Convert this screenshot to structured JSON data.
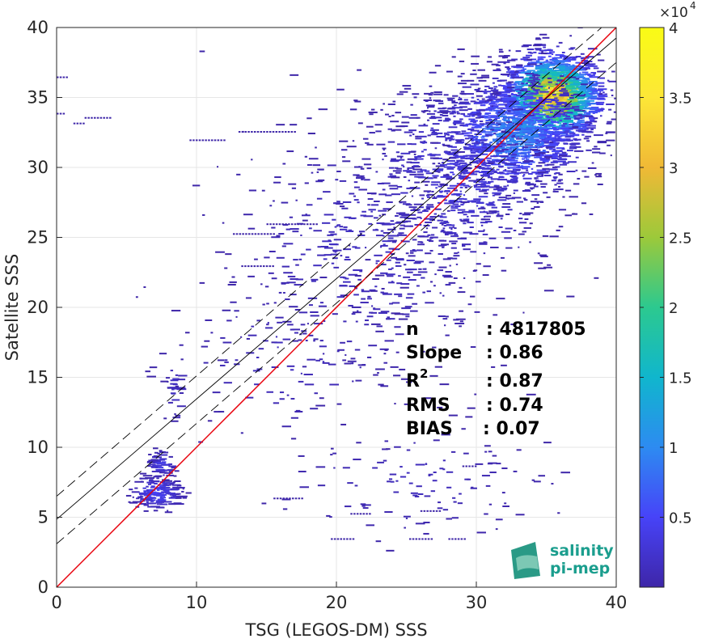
{
  "chart_data": {
    "type": "heatmap",
    "xlabel": "TSG (LEGOS-DM) SSS",
    "ylabel": "Satellite SSS",
    "xlim": [
      0,
      40
    ],
    "ylim": [
      0,
      40
    ],
    "x_ticks": [
      0,
      10,
      20,
      30,
      40
    ],
    "y_ticks": [
      0,
      5,
      10,
      15,
      20,
      25,
      30,
      35,
      40
    ],
    "grid": true,
    "colorbar": {
      "multiplier_label": "×10",
      "exponent": "4",
      "range": [
        0,
        4
      ],
      "ticks": [
        0.5,
        1,
        1.5,
        2,
        2.5,
        3,
        3.5,
        4
      ],
      "colormap": "parula",
      "colors": [
        "#3e26a8",
        "#4743f8",
        "#2d8bf1",
        "#10b6cd",
        "#2cc98f",
        "#9cc93a",
        "#f0b936",
        "#fde737",
        "#f9fb15"
      ]
    },
    "stats": {
      "n": {
        "label": "n",
        "value": ": 4817805"
      },
      "slope": {
        "label": "Slope",
        "value": ": 0.86"
      },
      "r2": {
        "label": "R",
        "sup": "2",
        "value": ": 0.87"
      },
      "rms": {
        "label": "RMS",
        "value": ": 0.74"
      },
      "bias": {
        "label": "BIAS",
        "value": ": 0.07"
      }
    },
    "lines": {
      "identity": {
        "slope": 1,
        "intercept": 0,
        "color": "#e8000b"
      },
      "fit": {
        "slope": 0.86,
        "intercept": 4.85,
        "color": "#000000"
      },
      "fit_upper": {
        "slope": 0.86,
        "intercept": 6.5,
        "color": "#000000",
        "dash": true
      },
      "fit_lower": {
        "slope": 0.86,
        "intercept": 3.1,
        "color": "#000000",
        "dash": true
      }
    },
    "density_clusters": [
      {
        "cx": 35.2,
        "cy": 35.1,
        "sx": 1.7,
        "sy": 1.5,
        "count": 1800,
        "weight": 1.0
      },
      {
        "cx": 32.5,
        "cy": 32.5,
        "sx": 2.6,
        "sy": 2.1,
        "count": 1100,
        "weight": 0.3
      },
      {
        "cx": 28.5,
        "cy": 29.5,
        "sx": 3.5,
        "sy": 3.4,
        "count": 700,
        "weight": 0.1
      },
      {
        "cx": 22.0,
        "cy": 24.0,
        "sx": 5.0,
        "sy": 4.5,
        "count": 500,
        "weight": 0.05
      },
      {
        "cx": 7.0,
        "cy": 6.8,
        "sx": 0.9,
        "sy": 0.6,
        "count": 160,
        "weight": 0.15
      },
      {
        "cx": 7.3,
        "cy": 8.8,
        "sx": 0.5,
        "sy": 0.5,
        "count": 60,
        "weight": 0.12
      },
      {
        "cx": 8.3,
        "cy": 14.5,
        "sx": 0.3,
        "sy": 1.4,
        "count": 30,
        "weight": 0.05
      },
      {
        "cx": 25.0,
        "cy": 7.5,
        "sx": 5.0,
        "sy": 2.0,
        "count": 120,
        "weight": 0.04
      },
      {
        "cx": 16.0,
        "cy": 16.0,
        "sx": 4.0,
        "sy": 3.0,
        "count": 120,
        "weight": 0.04
      }
    ],
    "sparse_segments": [
      {
        "x0": 0.0,
        "x1": 0.7,
        "y": 36.5
      },
      {
        "x0": 0.0,
        "x1": 0.5,
        "y": 33.9
      },
      {
        "x0": 2.0,
        "x1": 3.8,
        "y": 33.6
      },
      {
        "x0": 1.2,
        "x1": 1.9,
        "y": 33.2
      },
      {
        "x0": 12.6,
        "x1": 15.6,
        "y": 25.3
      },
      {
        "x0": 15.0,
        "x1": 18.6,
        "y": 26.0
      },
      {
        "x0": 13.2,
        "x1": 15.5,
        "y": 23.0
      },
      {
        "x0": 9.5,
        "x1": 12.0,
        "y": 32.0
      },
      {
        "x0": 13.0,
        "x1": 17.0,
        "y": 32.6
      },
      {
        "x0": 19.6,
        "x1": 21.2,
        "y": 3.5
      },
      {
        "x0": 25.2,
        "x1": 26.8,
        "y": 3.5
      },
      {
        "x0": 28.0,
        "x1": 29.2,
        "y": 3.5
      },
      {
        "x0": 15.5,
        "x1": 17.5,
        "y": 6.4
      },
      {
        "x0": 21.0,
        "x1": 22.5,
        "y": 5.3
      },
      {
        "x0": 26.0,
        "x1": 27.5,
        "y": 5.5
      },
      {
        "x0": 29.0,
        "x1": 30.0,
        "y": 8.7
      }
    ],
    "watermark": {
      "line1": "salinity",
      "line2": "pi-mep"
    }
  }
}
